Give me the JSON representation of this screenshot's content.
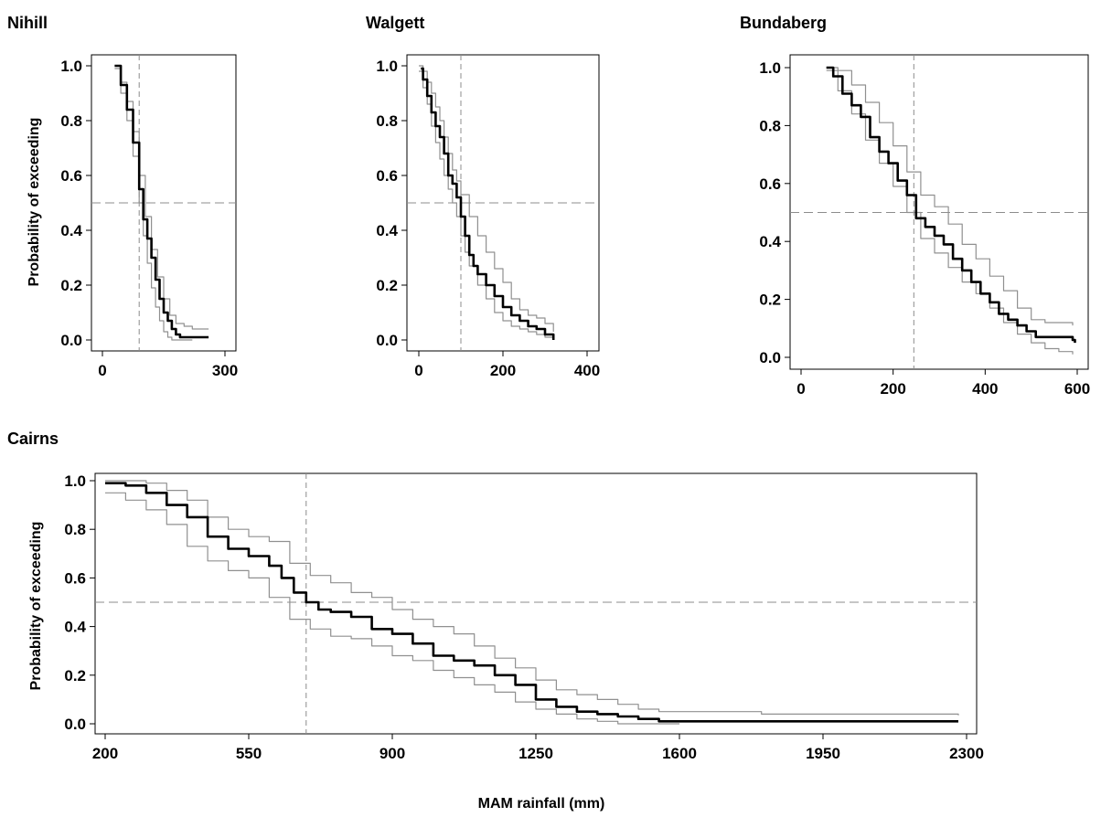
{
  "colors": {
    "median": "#000000",
    "bounds": "#909090",
    "reference": "#8c8c8c",
    "frame": "#000000"
  },
  "chart_data": [
    {
      "type": "line",
      "title": "Nihill",
      "ylabel": "Probability of exceeding",
      "xlabel": "",
      "xlim": [
        0,
        300
      ],
      "ylim": [
        0,
        1
      ],
      "xticks": [
        0,
        300
      ],
      "yticks": [
        0.0,
        0.2,
        0.4,
        0.6,
        0.8,
        1.0
      ],
      "ytick_labels": [
        "0.0",
        "0.2",
        "0.4",
        "0.6",
        "0.8",
        "1.0"
      ],
      "reference_lines": {
        "x": 90,
        "y": 0.5
      },
      "series": [
        {
          "role": "median",
          "x": [
            30,
            45,
            60,
            75,
            90,
            100,
            110,
            120,
            130,
            140,
            150,
            160,
            170,
            180,
            190,
            210,
            230,
            260
          ],
          "y": [
            1.0,
            0.93,
            0.84,
            0.72,
            0.55,
            0.44,
            0.37,
            0.3,
            0.22,
            0.15,
            0.1,
            0.07,
            0.04,
            0.02,
            0.01,
            0.01,
            0.01,
            0.01
          ]
        },
        {
          "role": "upper",
          "x": [
            30,
            45,
            60,
            75,
            90,
            105,
            120,
            135,
            150,
            165,
            180,
            200,
            220,
            240,
            260
          ],
          "y": [
            1.0,
            0.94,
            0.87,
            0.76,
            0.6,
            0.45,
            0.33,
            0.23,
            0.15,
            0.09,
            0.06,
            0.05,
            0.04,
            0.04,
            0.04
          ]
        },
        {
          "role": "lower",
          "x": [
            30,
            45,
            60,
            75,
            90,
            100,
            110,
            120,
            130,
            140,
            150,
            160,
            170,
            180,
            190,
            200,
            220
          ],
          "y": [
            0.99,
            0.9,
            0.8,
            0.67,
            0.5,
            0.38,
            0.28,
            0.19,
            0.12,
            0.07,
            0.03,
            0.01,
            0.0,
            0.0,
            0.0,
            0.0,
            0.0
          ]
        }
      ]
    },
    {
      "type": "line",
      "title": "Walgett",
      "ylabel": "",
      "xlabel": "",
      "xlim": [
        0,
        400
      ],
      "ylim": [
        0,
        1
      ],
      "xticks": [
        0,
        200,
        400
      ],
      "yticks": [
        0.0,
        0.2,
        0.4,
        0.6,
        0.8,
        1.0
      ],
      "ytick_labels": [
        "0.0",
        "0.2",
        "0.4",
        "0.6",
        "0.8",
        "1.0"
      ],
      "reference_lines": {
        "x": 100,
        "y": 0.5
      },
      "series": [
        {
          "role": "median",
          "x": [
            5,
            10,
            20,
            30,
            40,
            50,
            60,
            70,
            80,
            90,
            100,
            110,
            120,
            130,
            140,
            160,
            180,
            200,
            220,
            240,
            260,
            280,
            300,
            320
          ],
          "y": [
            0.99,
            0.95,
            0.89,
            0.83,
            0.78,
            0.74,
            0.68,
            0.6,
            0.57,
            0.52,
            0.45,
            0.38,
            0.31,
            0.27,
            0.24,
            0.2,
            0.16,
            0.12,
            0.09,
            0.07,
            0.05,
            0.04,
            0.02,
            0.0
          ]
        },
        {
          "role": "upper",
          "x": [
            0,
            10,
            20,
            30,
            40,
            50,
            60,
            70,
            80,
            90,
            100,
            120,
            140,
            160,
            180,
            200,
            220,
            240,
            260,
            280,
            300,
            320
          ],
          "y": [
            1.0,
            0.98,
            0.94,
            0.9,
            0.85,
            0.8,
            0.74,
            0.68,
            0.62,
            0.58,
            0.53,
            0.45,
            0.38,
            0.32,
            0.26,
            0.21,
            0.15,
            0.11,
            0.09,
            0.08,
            0.06,
            0.03
          ]
        },
        {
          "role": "lower",
          "x": [
            0,
            10,
            20,
            30,
            40,
            50,
            60,
            70,
            80,
            90,
            100,
            110,
            120,
            140,
            160,
            180,
            200,
            220,
            240,
            260,
            280,
            300,
            320
          ],
          "y": [
            0.98,
            0.92,
            0.86,
            0.78,
            0.72,
            0.66,
            0.6,
            0.55,
            0.5,
            0.45,
            0.38,
            0.32,
            0.27,
            0.2,
            0.15,
            0.1,
            0.07,
            0.05,
            0.04,
            0.03,
            0.02,
            0.01,
            0.0
          ]
        }
      ]
    },
    {
      "type": "line",
      "title": "Bundaberg",
      "ylabel": "",
      "xlabel": "",
      "xlim": [
        0,
        600
      ],
      "ylim": [
        0,
        1
      ],
      "xticks": [
        0,
        200,
        400,
        600
      ],
      "yticks": [
        0.0,
        0.2,
        0.4,
        0.6,
        0.8,
        1.0
      ],
      "ytick_labels": [
        "0.0",
        "0.2",
        "0.4",
        "0.6",
        "0.8",
        "1.0"
      ],
      "reference_lines": {
        "x": 245,
        "y": 0.5
      },
      "series": [
        {
          "role": "median",
          "x": [
            55,
            70,
            90,
            110,
            130,
            150,
            170,
            190,
            210,
            230,
            250,
            270,
            290,
            310,
            330,
            350,
            370,
            390,
            410,
            430,
            450,
            470,
            490,
            510,
            530,
            550,
            570,
            590,
            595
          ],
          "y": [
            1.0,
            0.97,
            0.91,
            0.87,
            0.83,
            0.76,
            0.71,
            0.67,
            0.61,
            0.56,
            0.48,
            0.45,
            0.42,
            0.39,
            0.34,
            0.3,
            0.26,
            0.22,
            0.19,
            0.15,
            0.13,
            0.11,
            0.09,
            0.07,
            0.07,
            0.07,
            0.07,
            0.06,
            0.05
          ]
        },
        {
          "role": "upper",
          "x": [
            55,
            80,
            110,
            140,
            170,
            200,
            230,
            260,
            290,
            320,
            350,
            380,
            410,
            440,
            470,
            500,
            530,
            560,
            590
          ],
          "y": [
            1.0,
            0.99,
            0.94,
            0.88,
            0.81,
            0.73,
            0.64,
            0.56,
            0.52,
            0.46,
            0.39,
            0.34,
            0.28,
            0.23,
            0.17,
            0.13,
            0.12,
            0.12,
            0.11
          ]
        },
        {
          "role": "lower",
          "x": [
            55,
            80,
            110,
            140,
            170,
            200,
            230,
            260,
            290,
            320,
            350,
            380,
            410,
            440,
            470,
            500,
            530,
            560,
            590
          ],
          "y": [
            0.99,
            0.92,
            0.84,
            0.75,
            0.67,
            0.59,
            0.5,
            0.41,
            0.36,
            0.31,
            0.26,
            0.22,
            0.17,
            0.12,
            0.08,
            0.05,
            0.03,
            0.02,
            0.01
          ]
        }
      ]
    },
    {
      "type": "line",
      "title": "Cairns",
      "ylabel": "Probability of exceeding",
      "xlabel": "MAM rainfall (mm)",
      "xlim": [
        200,
        2300
      ],
      "ylim": [
        0,
        1
      ],
      "xticks": [
        200,
        550,
        900,
        1250,
        1600,
        1950,
        2300
      ],
      "yticks": [
        0.0,
        0.2,
        0.4,
        0.6,
        0.8,
        1.0
      ],
      "ytick_labels": [
        "0.0",
        "0.2",
        "0.4",
        "0.6",
        "0.8",
        "1.0"
      ],
      "reference_lines": {
        "x": 690,
        "y": 0.5
      },
      "series": [
        {
          "role": "median",
          "x": [
            200,
            250,
            300,
            350,
            400,
            450,
            500,
            550,
            600,
            630,
            660,
            690,
            720,
            750,
            800,
            850,
            900,
            950,
            1000,
            1050,
            1100,
            1150,
            1200,
            1250,
            1300,
            1350,
            1400,
            1450,
            1500,
            1550,
            1600,
            1650,
            1700,
            1800,
            2000,
            2280
          ],
          "y": [
            0.99,
            0.98,
            0.95,
            0.9,
            0.85,
            0.77,
            0.72,
            0.69,
            0.65,
            0.6,
            0.54,
            0.5,
            0.47,
            0.46,
            0.44,
            0.39,
            0.37,
            0.33,
            0.28,
            0.26,
            0.24,
            0.2,
            0.16,
            0.1,
            0.07,
            0.05,
            0.04,
            0.03,
            0.02,
            0.01,
            0.01,
            0.01,
            0.01,
            0.01,
            0.01,
            0.01
          ]
        },
        {
          "role": "upper",
          "x": [
            200,
            300,
            350,
            400,
            450,
            500,
            550,
            600,
            650,
            700,
            750,
            800,
            850,
            900,
            950,
            1000,
            1050,
            1100,
            1150,
            1200,
            1250,
            1300,
            1350,
            1400,
            1450,
            1500,
            1550,
            1600,
            1700,
            1800,
            2000,
            2280
          ],
          "y": [
            1.0,
            0.99,
            0.96,
            0.92,
            0.85,
            0.8,
            0.77,
            0.75,
            0.66,
            0.61,
            0.58,
            0.54,
            0.52,
            0.47,
            0.43,
            0.4,
            0.37,
            0.32,
            0.27,
            0.23,
            0.18,
            0.14,
            0.12,
            0.1,
            0.08,
            0.06,
            0.05,
            0.05,
            0.05,
            0.04,
            0.04,
            0.035
          ]
        },
        {
          "role": "lower",
          "x": [
            200,
            250,
            300,
            350,
            400,
            450,
            500,
            550,
            600,
            650,
            700,
            750,
            800,
            850,
            900,
            950,
            1000,
            1050,
            1100,
            1150,
            1200,
            1250,
            1300,
            1350,
            1400,
            1450,
            1500,
            1550,
            1600
          ],
          "y": [
            0.95,
            0.92,
            0.88,
            0.82,
            0.73,
            0.67,
            0.63,
            0.6,
            0.52,
            0.43,
            0.39,
            0.36,
            0.35,
            0.32,
            0.28,
            0.26,
            0.22,
            0.19,
            0.16,
            0.13,
            0.09,
            0.06,
            0.04,
            0.02,
            0.01,
            0.0,
            0.0,
            0.0,
            0.0
          ]
        }
      ]
    }
  ]
}
